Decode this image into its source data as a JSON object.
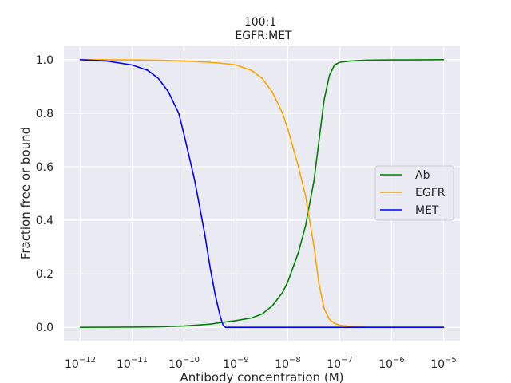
{
  "chart_data": {
    "type": "line",
    "title": "100:1",
    "subtitle": "EGFR:MET",
    "xlabel": "Antibody concentration (M)",
    "ylabel": "Fraction free or bound",
    "xscale": "log",
    "xlim": [
      1e-12,
      1e-05
    ],
    "ylim": [
      -0.05,
      1.05
    ],
    "x_ticks": [
      {
        "base": "10",
        "exp": "−12",
        "value": 1e-12
      },
      {
        "base": "10",
        "exp": "−11",
        "value": 1e-11
      },
      {
        "base": "10",
        "exp": "−10",
        "value": 1e-10
      },
      {
        "base": "10",
        "exp": "−9",
        "value": 1e-09
      },
      {
        "base": "10",
        "exp": "−8",
        "value": 1e-08
      },
      {
        "base": "10",
        "exp": "−7",
        "value": 1e-07
      },
      {
        "base": "10",
        "exp": "−6",
        "value": 1e-06
      },
      {
        "base": "10",
        "exp": "−5",
        "value": 1e-05
      }
    ],
    "y_ticks": [
      "0.0",
      "0.2",
      "0.4",
      "0.6",
      "0.8",
      "1.0"
    ],
    "grid": true,
    "legend_position": "center-right",
    "series": [
      {
        "name": "Ab",
        "color": "#008000",
        "x": [
          1e-12,
          1e-11,
          3.2e-11,
          1e-10,
          3.2e-10,
          6.3e-10,
          1e-09,
          2e-09,
          3.2e-09,
          5e-09,
          7.9e-09,
          1e-08,
          1.6e-08,
          2.2e-08,
          3.2e-08,
          4e-08,
          5e-08,
          6.3e-08,
          7.9e-08,
          1e-07,
          1.6e-07,
          3.2e-07,
          1e-06,
          1e-05
        ],
        "y": [
          0.0,
          0.001,
          0.002,
          0.005,
          0.012,
          0.02,
          0.025,
          0.035,
          0.05,
          0.08,
          0.13,
          0.17,
          0.28,
          0.38,
          0.55,
          0.7,
          0.85,
          0.94,
          0.98,
          0.99,
          0.995,
          0.998,
          0.999,
          1.0
        ]
      },
      {
        "name": "EGFR",
        "color": "#ffa500",
        "x": [
          1e-12,
          1e-11,
          3.2e-11,
          1e-10,
          3.2e-10,
          6.3e-10,
          1e-09,
          2e-09,
          3.2e-09,
          5e-09,
          7.9e-09,
          1e-08,
          1.6e-08,
          2.2e-08,
          3.2e-08,
          4e-08,
          5e-08,
          6.3e-08,
          7.9e-08,
          1e-07,
          1.6e-07,
          3.2e-07,
          1e-06,
          1e-05
        ],
        "y": [
          1.0,
          0.999,
          0.998,
          0.995,
          0.99,
          0.985,
          0.98,
          0.96,
          0.93,
          0.88,
          0.8,
          0.74,
          0.6,
          0.49,
          0.3,
          0.16,
          0.07,
          0.03,
          0.015,
          0.008,
          0.003,
          0.001,
          0.0,
          0.0
        ]
      },
      {
        "name": "MET",
        "color": "#0000ff",
        "x": [
          1e-12,
          3.2e-12,
          1e-11,
          2e-11,
          3.2e-11,
          5e-11,
          7.9e-11,
          1e-10,
          1.6e-10,
          2.5e-10,
          3.2e-10,
          4e-10,
          5e-10,
          5.6e-10,
          6.3e-10,
          1e-09,
          1e-08,
          1e-07,
          1e-06,
          1e-05
        ],
        "y": [
          1.0,
          0.995,
          0.98,
          0.96,
          0.93,
          0.88,
          0.8,
          0.72,
          0.55,
          0.35,
          0.22,
          0.12,
          0.04,
          0.01,
          0.0,
          0.0,
          0.0,
          0.0,
          0.0,
          0.0
        ]
      }
    ]
  }
}
